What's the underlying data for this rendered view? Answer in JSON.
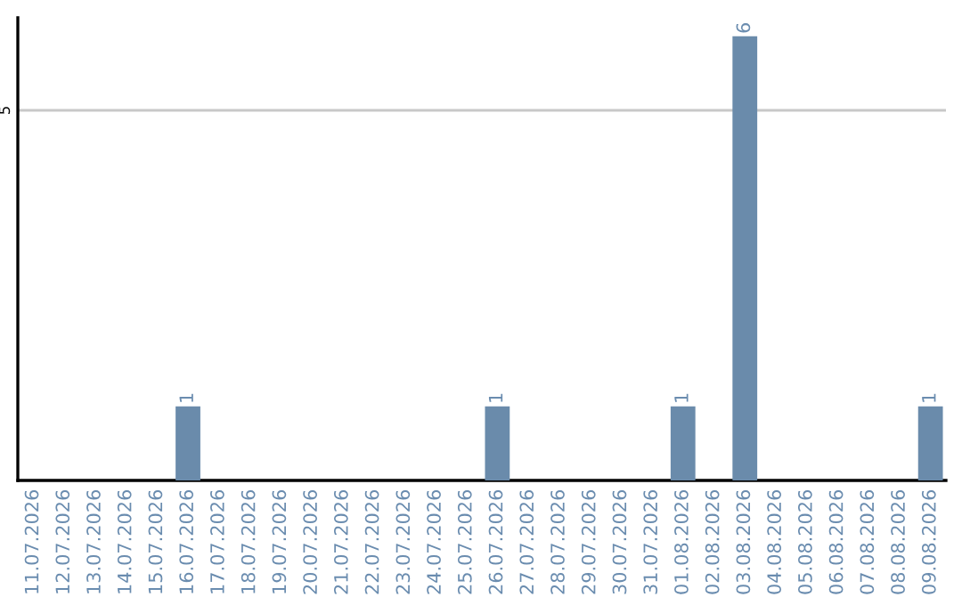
{
  "chart_data": {
    "type": "bar",
    "categories": [
      "11.07.2026",
      "12.07.2026",
      "13.07.2026",
      "14.07.2026",
      "15.07.2026",
      "16.07.2026",
      "17.07.2026",
      "18.07.2026",
      "19.07.2026",
      "20.07.2026",
      "21.07.2026",
      "22.07.2026",
      "23.07.2026",
      "24.07.2026",
      "25.07.2026",
      "26.07.2026",
      "27.07.2026",
      "28.07.2026",
      "29.07.2026",
      "30.07.2026",
      "31.07.2026",
      "01.08.2026",
      "02.08.2026",
      "03.08.2026",
      "04.08.2026",
      "05.08.2026",
      "06.08.2026",
      "07.08.2026",
      "08.08.2026",
      "09.08.2026"
    ],
    "values": [
      0,
      0,
      0,
      0,
      0,
      1,
      0,
      0,
      0,
      0,
      0,
      0,
      0,
      0,
      0,
      1,
      0,
      0,
      0,
      0,
      0,
      1,
      0,
      6,
      0,
      0,
      0,
      0,
      0,
      1
    ],
    "value_labels": [
      null,
      null,
      null,
      null,
      null,
      "1",
      null,
      null,
      null,
      null,
      null,
      null,
      null,
      null,
      null,
      "1",
      null,
      null,
      null,
      null,
      null,
      "1",
      null,
      "6",
      null,
      null,
      null,
      null,
      null,
      "1"
    ],
    "color": "#6a8bab",
    "ylim": [
      0,
      6.25
    ],
    "yticks": [
      5
    ],
    "grid": "y",
    "legend": false
  }
}
